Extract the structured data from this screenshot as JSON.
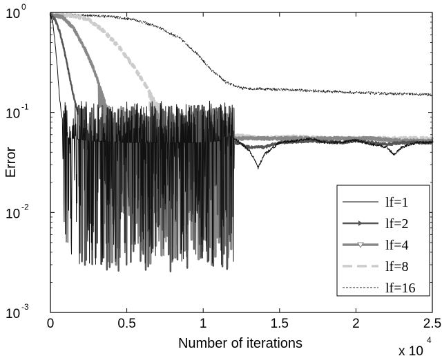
{
  "chart_data": {
    "type": "line",
    "xlabel": "Number of iterations",
    "ylabel": "Error",
    "x_multiplier_label": "x 10",
    "x_multiplier_exp": "4",
    "y_scale": "log",
    "xlim": [
      0,
      25000
    ],
    "ylim": [
      0.001,
      1
    ],
    "x_ticks": [
      {
        "value": 0,
        "label": "0"
      },
      {
        "value": 5000,
        "label": "0.5"
      },
      {
        "value": 10000,
        "label": "1"
      },
      {
        "value": 15000,
        "label": "1.5"
      },
      {
        "value": 20000,
        "label": "2"
      },
      {
        "value": 25000,
        "label": "2.5"
      }
    ],
    "y_ticks": [
      {
        "value": 1,
        "base": "10",
        "exp": "0"
      },
      {
        "value": 0.1,
        "base": "10",
        "exp": "-1"
      },
      {
        "value": 0.01,
        "base": "10",
        "exp": "-2"
      },
      {
        "value": 0.001,
        "base": "10",
        "exp": "-3"
      }
    ],
    "grid": false,
    "legend_position": "lower-right",
    "series": [
      {
        "name": "lf=1",
        "color": "#111111",
        "width": 1.0,
        "dash": "",
        "marker": "none",
        "points": [
          [
            0,
            0.95
          ],
          [
            150,
            0.8
          ],
          [
            300,
            0.5
          ],
          [
            450,
            0.28
          ],
          [
            600,
            0.14
          ],
          [
            750,
            0.09
          ],
          [
            900,
            0.07
          ],
          [
            1050,
            0.06
          ],
          [
            1200,
            0.055
          ],
          [
            1500,
            0.055
          ],
          [
            2500,
            0.052
          ],
          [
            5000,
            0.05
          ],
          [
            8000,
            0.05
          ],
          [
            10000,
            0.05
          ],
          [
            11000,
            0.052
          ],
          [
            11800,
            0.058
          ],
          [
            12400,
            0.05
          ],
          [
            13000,
            0.042
          ],
          [
            13300,
            0.035
          ],
          [
            13600,
            0.028
          ],
          [
            14000,
            0.038
          ],
          [
            15000,
            0.05
          ],
          [
            16000,
            0.052
          ],
          [
            17000,
            0.055
          ],
          [
            18000,
            0.05
          ],
          [
            19000,
            0.05
          ],
          [
            20000,
            0.053
          ],
          [
            21000,
            0.048
          ],
          [
            22000,
            0.045
          ],
          [
            22500,
            0.038
          ],
          [
            23000,
            0.045
          ],
          [
            24000,
            0.05
          ],
          [
            25000,
            0.05
          ]
        ],
        "noise_range": [
          800,
          12000
        ],
        "noise_min": 0.003,
        "noise_max": 0.13
      },
      {
        "name": "lf=2",
        "color": "#555555",
        "width": 2.5,
        "dash": "",
        "marker": "triangle-right",
        "points": [
          [
            0,
            0.95
          ],
          [
            300,
            0.85
          ],
          [
            600,
            0.65
          ],
          [
            900,
            0.42
          ],
          [
            1200,
            0.25
          ],
          [
            1500,
            0.15
          ],
          [
            1800,
            0.1
          ],
          [
            2100,
            0.075
          ],
          [
            2400,
            0.062
          ],
          [
            3000,
            0.055
          ],
          [
            5000,
            0.052
          ],
          [
            8000,
            0.05
          ],
          [
            10000,
            0.05
          ],
          [
            11800,
            0.052
          ],
          [
            12500,
            0.048
          ],
          [
            13000,
            0.045
          ],
          [
            14000,
            0.045
          ],
          [
            15000,
            0.05
          ],
          [
            17000,
            0.052
          ],
          [
            19000,
            0.05
          ],
          [
            20000,
            0.052
          ],
          [
            21000,
            0.05
          ],
          [
            22000,
            0.048
          ],
          [
            23000,
            0.05
          ],
          [
            25000,
            0.05
          ]
        ],
        "noise_range": [
          1800,
          12000
        ],
        "noise_min": 0.0025,
        "noise_max": 0.12
      },
      {
        "name": "lf=4",
        "color": "#888888",
        "width": 3.5,
        "dash": "",
        "marker": "triangle-down",
        "points": [
          [
            0,
            0.95
          ],
          [
            800,
            0.9
          ],
          [
            1500,
            0.7
          ],
          [
            2200,
            0.45
          ],
          [
            2800,
            0.28
          ],
          [
            3300,
            0.17
          ],
          [
            3800,
            0.1
          ],
          [
            4300,
            0.075
          ],
          [
            5000,
            0.062
          ],
          [
            6000,
            0.055
          ],
          [
            8000,
            0.05
          ],
          [
            10000,
            0.05
          ],
          [
            11800,
            0.055
          ],
          [
            13000,
            0.055
          ],
          [
            15000,
            0.055
          ],
          [
            17000,
            0.055
          ],
          [
            19000,
            0.055
          ],
          [
            21000,
            0.055
          ],
          [
            23000,
            0.052
          ],
          [
            25000,
            0.052
          ]
        ],
        "noise_range": [
          3200,
          12000
        ],
        "noise_min": 0.003,
        "noise_max": 0.11
      },
      {
        "name": "lf=8",
        "color": "#cccccc",
        "width": 4,
        "dash": "14,7",
        "marker": "none",
        "points": [
          [
            0,
            0.95
          ],
          [
            1500,
            0.93
          ],
          [
            2500,
            0.85
          ],
          [
            3500,
            0.65
          ],
          [
            4500,
            0.45
          ],
          [
            5500,
            0.28
          ],
          [
            6500,
            0.16
          ],
          [
            7500,
            0.1
          ],
          [
            8500,
            0.075
          ],
          [
            9500,
            0.062
          ],
          [
            10500,
            0.058
          ],
          [
            11500,
            0.06
          ],
          [
            12500,
            0.058
          ],
          [
            14000,
            0.055
          ],
          [
            16000,
            0.057
          ],
          [
            18000,
            0.055
          ],
          [
            20000,
            0.055
          ],
          [
            22000,
            0.055
          ],
          [
            25000,
            0.055
          ]
        ],
        "noise_range": [
          6500,
          11500
        ],
        "noise_min": 0.035,
        "noise_max": 0.1
      },
      {
        "name": "lf=16",
        "color": "#222222",
        "width": 1.0,
        "dash": "3,2",
        "marker": "none",
        "points": [
          [
            0,
            0.95
          ],
          [
            2000,
            0.94
          ],
          [
            4000,
            0.91
          ],
          [
            5500,
            0.85
          ],
          [
            7000,
            0.72
          ],
          [
            8500,
            0.55
          ],
          [
            9500,
            0.4
          ],
          [
            10500,
            0.27
          ],
          [
            11500,
            0.2
          ],
          [
            12500,
            0.175
          ],
          [
            15000,
            0.17
          ],
          [
            20000,
            0.158
          ],
          [
            25000,
            0.15
          ]
        ],
        "noise_range": [
          0,
          0
        ],
        "noise_min": 0,
        "noise_max": 0
      }
    ]
  }
}
